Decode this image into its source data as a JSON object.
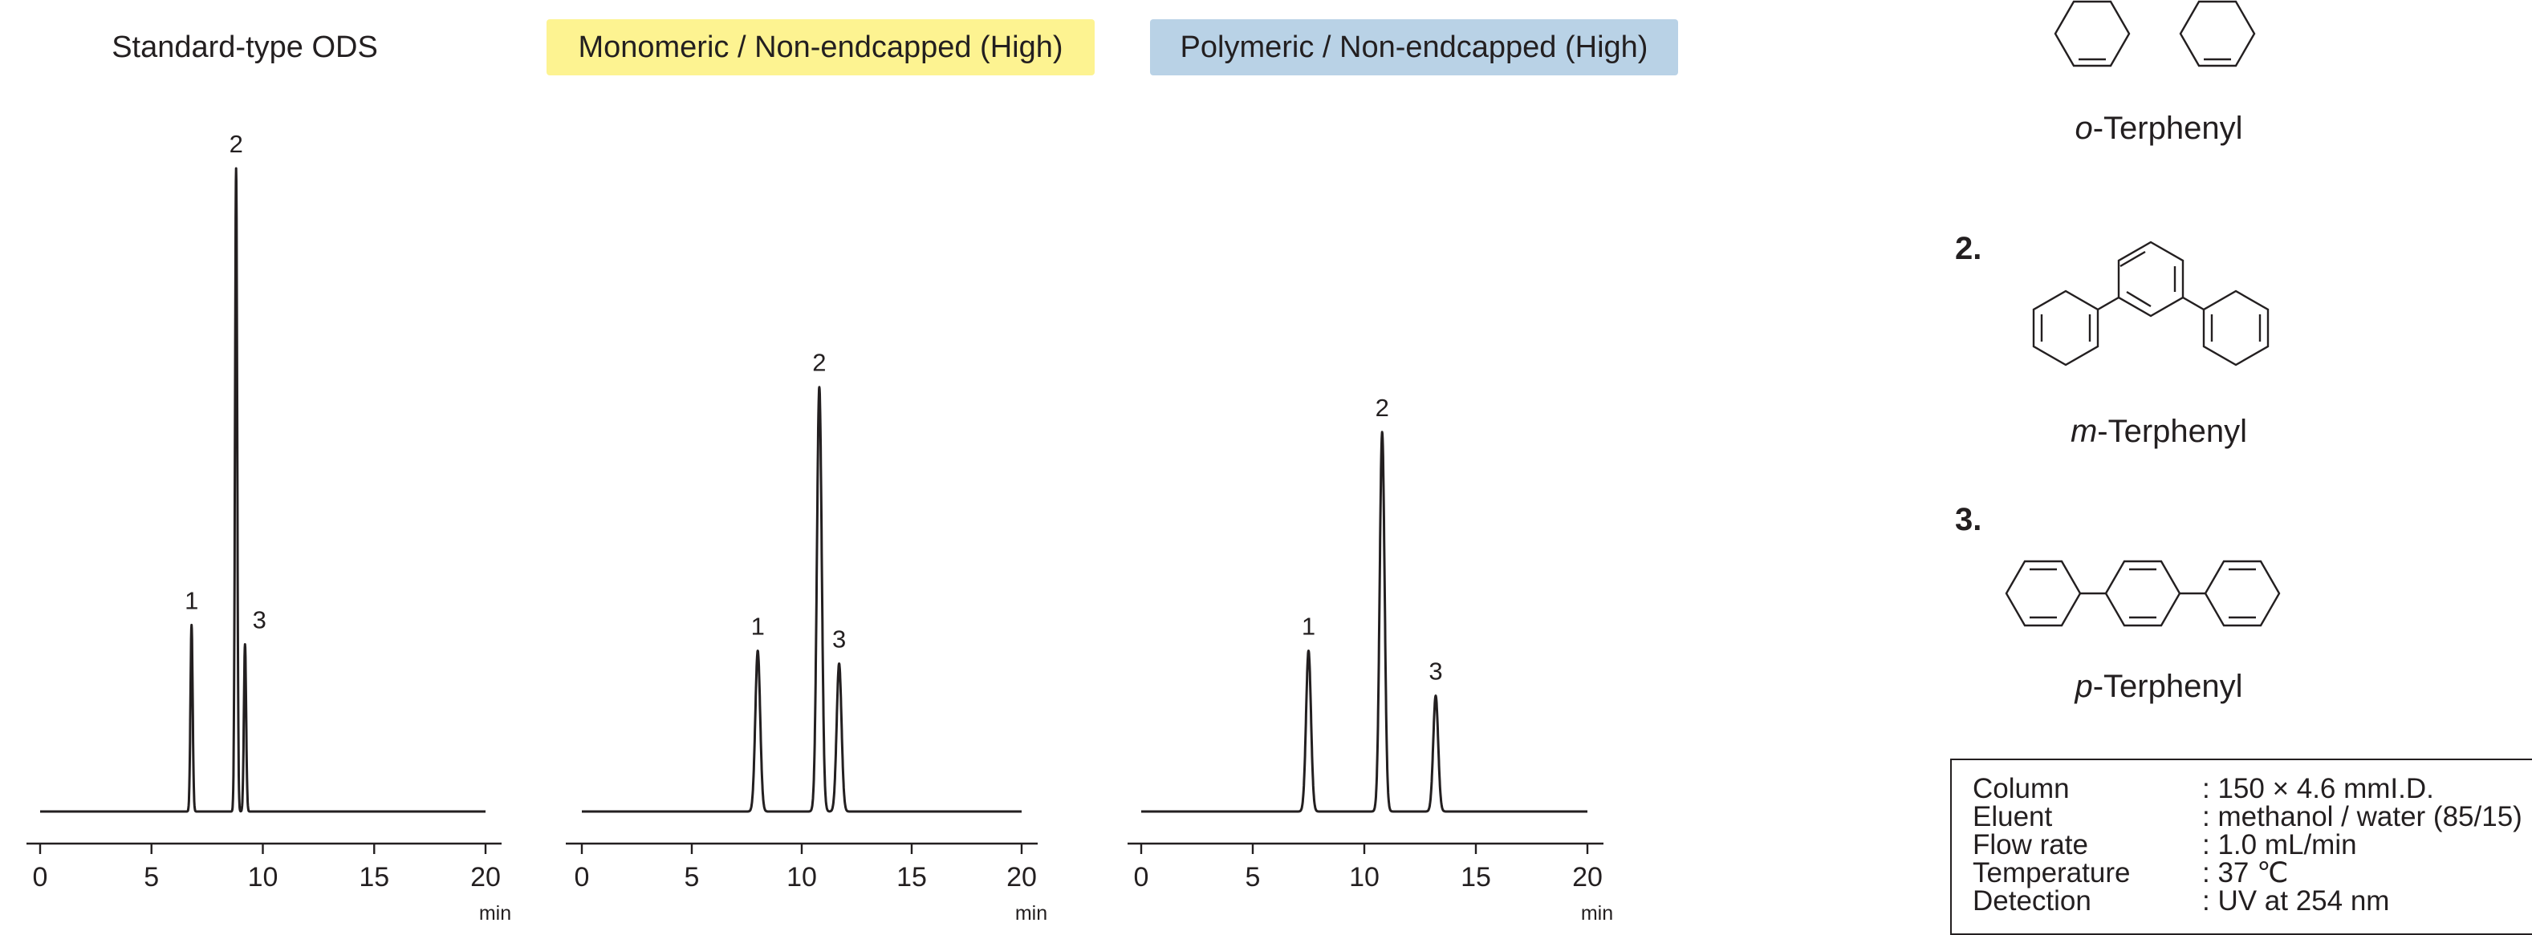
{
  "panels": [
    {
      "title": "Standard-type ODS"
    },
    {
      "title": "Monomeric / Non-endcapped (High)"
    },
    {
      "title": "Polymeric / Non-endcapped (High)"
    }
  ],
  "chart_data": [
    {
      "type": "line",
      "title": "Standard-type ODS",
      "xlabel": "min",
      "xlim": [
        0,
        20
      ],
      "xticks": [
        "0",
        "5",
        "10",
        "15",
        "20"
      ],
      "grid": false,
      "peaks": [
        {
          "label": "1",
          "retention_time": 6.8,
          "relative_height": 0.29
        },
        {
          "label": "2",
          "retention_time": 8.8,
          "relative_height": 1.0
        },
        {
          "label": "3",
          "retention_time": 9.2,
          "relative_height": 0.26
        }
      ]
    },
    {
      "type": "line",
      "title": "Monomeric / Non-endcapped (High)",
      "xlabel": "min",
      "xlim": [
        0,
        20
      ],
      "xticks": [
        "0",
        "5",
        "10",
        "15",
        "20"
      ],
      "grid": false,
      "peaks": [
        {
          "label": "1",
          "retention_time": 8.0,
          "relative_height": 0.25
        },
        {
          "label": "2",
          "retention_time": 10.8,
          "relative_height": 0.66
        },
        {
          "label": "3",
          "retention_time": 11.7,
          "relative_height": 0.23
        }
      ]
    },
    {
      "type": "line",
      "title": "Polymeric / Non-endcapped (High)",
      "xlabel": "min",
      "xlim": [
        0,
        20
      ],
      "xticks": [
        "0",
        "5",
        "10",
        "15",
        "20"
      ],
      "grid": false,
      "peaks": [
        {
          "label": "1",
          "retention_time": 7.5,
          "relative_height": 0.25
        },
        {
          "label": "2",
          "retention_time": 10.8,
          "relative_height": 0.59
        },
        {
          "label": "3",
          "retention_time": 13.2,
          "relative_height": 0.18
        }
      ]
    }
  ],
  "compounds": [
    {
      "number": "",
      "prefix": "o",
      "suffix": "-Terphenyl"
    },
    {
      "number": "2.",
      "prefix": "m",
      "suffix": "-Terphenyl"
    },
    {
      "number": "3.",
      "prefix": "p",
      "suffix": "-Terphenyl"
    }
  ],
  "conditions": [
    {
      "label": "Column",
      "value": ": 150 × 4.6 mmI.D."
    },
    {
      "label": "Eluent",
      "value": ": methanol / water (85/15)"
    },
    {
      "label": "Flow rate",
      "value": ": 1.0 mL/min"
    },
    {
      "label": "Temperature",
      "value": ": 37 ℃"
    },
    {
      "label": "Detection",
      "value": ": UV at 254 nm"
    }
  ]
}
